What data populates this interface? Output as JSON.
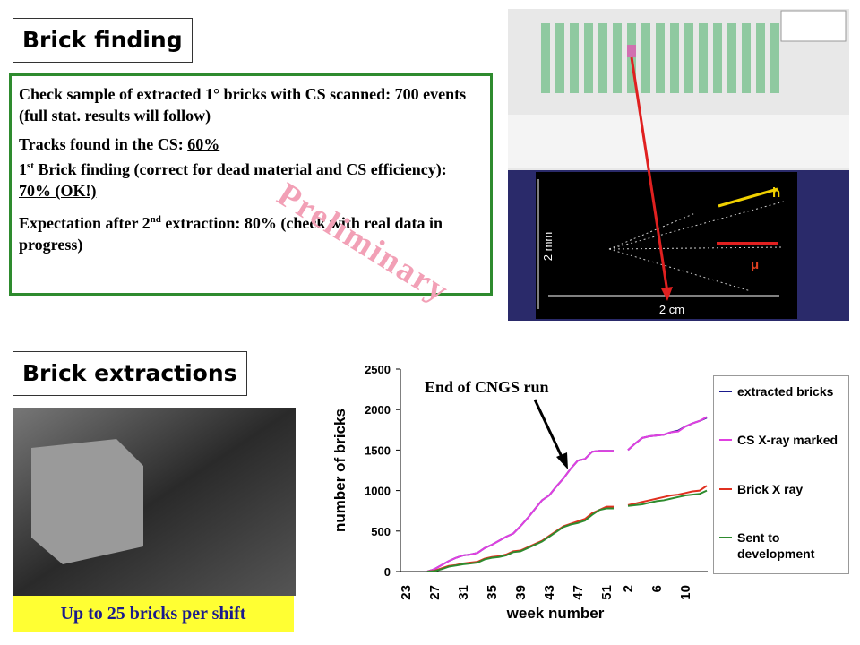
{
  "brick_finding": {
    "title": "Brick finding",
    "paragraphs": [
      [
        "Check sample of extracted 1° bricks with CS scanned: 700 events (full stat. results will follow)"
      ],
      [
        "Tracks found in the CS: ",
        "60%"
      ],
      [
        "1",
        "st",
        " Brick finding (correct for dead material and CS efficiency): ",
        "70% (OK!)"
      ],
      [
        "Expectation after 2",
        "nd",
        "  extraction: 80% (check with real data in progress)"
      ]
    ]
  },
  "watermark": "Preliminary",
  "event_display": {
    "scale_vertical": "2 mm",
    "scale_horizontal": "2 cm",
    "h_label": "h",
    "mu_label": "μ"
  },
  "brick_extractions": {
    "title": "Brick extractions",
    "caption": "Up to 25 bricks per shift"
  },
  "chart_data": {
    "type": "line",
    "y_label": "number of bricks",
    "x_label": "week number",
    "annotation": "End of CNGS run",
    "categories": [
      "23",
      null,
      null,
      null,
      "27",
      null,
      null,
      null,
      "31",
      null,
      null,
      null,
      "35",
      null,
      null,
      null,
      "39",
      null,
      null,
      null,
      "43",
      null,
      null,
      null,
      "47",
      null,
      null,
      null,
      "51",
      null,
      null,
      "2",
      null,
      null,
      null,
      "6",
      null,
      null,
      null,
      "10",
      null,
      null,
      null
    ],
    "ylim": [
      0,
      2500
    ],
    "yticks": [
      0,
      500,
      1000,
      1500,
      2000,
      2500
    ],
    "series": [
      {
        "name": "extracted bricks",
        "color": "#1a1a8c",
        "values": [
          null,
          null,
          null,
          0,
          30,
          80,
          130,
          170,
          200,
          210,
          230,
          290,
          330,
          380,
          430,
          470,
          560,
          660,
          770,
          880,
          940,
          1050,
          1150,
          1270,
          1370,
          1390,
          1480,
          1490,
          1490,
          1490,
          null,
          1500,
          1580,
          1650,
          1670,
          1680,
          1690,
          1720,
          1740,
          1790,
          1830,
          1860,
          1900
        ]
      },
      {
        "name": "CS X-ray marked",
        "color": "#e040e0",
        "values": [
          null,
          null,
          null,
          0,
          30,
          80,
          130,
          170,
          200,
          210,
          230,
          290,
          330,
          380,
          430,
          470,
          560,
          660,
          770,
          880,
          940,
          1050,
          1150,
          1270,
          1370,
          1390,
          1480,
          1490,
          1490,
          1490,
          null,
          1500,
          1580,
          1650,
          1670,
          1680,
          1690,
          1720,
          1730,
          1790,
          1830,
          1860,
          1910
        ]
      },
      {
        "name": "Brick X ray",
        "color": "#e03020",
        "values": [
          null,
          null,
          null,
          0,
          10,
          40,
          70,
          80,
          100,
          110,
          120,
          160,
          180,
          190,
          210,
          250,
          260,
          300,
          340,
          380,
          440,
          500,
          560,
          590,
          620,
          650,
          720,
          760,
          800,
          800,
          null,
          820,
          840,
          860,
          880,
          900,
          920,
          940,
          950,
          970,
          990,
          1000,
          1060
        ]
      },
      {
        "name": "Sent to development",
        "color": "#2e8b2e",
        "values": [
          null,
          null,
          null,
          0,
          5,
          30,
          60,
          75,
          90,
          100,
          110,
          150,
          170,
          180,
          200,
          240,
          250,
          290,
          330,
          370,
          430,
          490,
          550,
          580,
          600,
          630,
          700,
          760,
          780,
          780,
          null,
          810,
          820,
          830,
          850,
          870,
          880,
          900,
          920,
          940,
          950,
          960,
          1000
        ]
      }
    ]
  }
}
